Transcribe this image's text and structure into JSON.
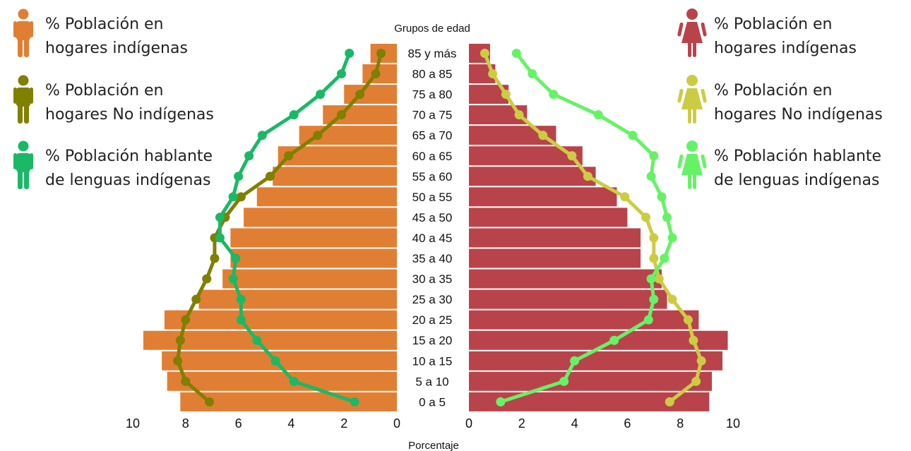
{
  "chart_data": {
    "type": "bar",
    "subtype": "population-pyramid-with-line-overlays",
    "category_header": "Grupos de edad",
    "xlabel": "Porcentaje",
    "categories": [
      "85 y más",
      "80 a 85",
      "75 a 80",
      "70 a 75",
      "65 a 70",
      "60 a 65",
      "55 a 60",
      "50 a 55",
      "45 a 50",
      "40 a 45",
      "35 a 40",
      "30 a 35",
      "25 a 30",
      "20 a 25",
      "15 a 20",
      "10 a 15",
      "5 a 10",
      "0 a  5"
    ],
    "xlim": [
      0,
      10
    ],
    "xticks": [
      "10",
      "8",
      "6",
      "4",
      "2",
      "0",
      "0",
      "2",
      "4",
      "6",
      "8",
      "10"
    ],
    "grid": false,
    "left": {
      "bar_series": {
        "name": "% Población en hogares indígenas",
        "color": "#e07f33",
        "values": [
          1.0,
          1.3,
          2.0,
          2.8,
          3.7,
          4.5,
          4.7,
          5.3,
          5.8,
          6.3,
          6.3,
          6.6,
          7.5,
          8.8,
          9.6,
          8.9,
          8.7,
          8.2
        ]
      },
      "line_series": [
        {
          "name": "% Población en hogares No indígenas",
          "color": "#7f7f00",
          "values": [
            0.6,
            0.8,
            1.4,
            2.1,
            3.0,
            4.1,
            4.8,
            5.9,
            6.5,
            6.9,
            6.9,
            7.2,
            7.6,
            8.0,
            8.2,
            8.3,
            8.0,
            7.1
          ]
        },
        {
          "name": "% Población hablante de lenguas indígenas",
          "color": "#1bb865",
          "values": [
            1.8,
            2.1,
            2.9,
            3.9,
            5.1,
            5.6,
            6.0,
            6.2,
            6.7,
            6.7,
            6.1,
            6.2,
            5.9,
            5.9,
            5.3,
            4.6,
            3.9,
            1.6
          ]
        }
      ]
    },
    "right": {
      "bar_series": {
        "name": "% Población en hogares indígenas",
        "color": "#b9434a",
        "values": [
          0.8,
          1.0,
          1.5,
          2.2,
          3.3,
          4.3,
          4.8,
          5.6,
          6.0,
          6.5,
          6.5,
          7.3,
          7.5,
          8.7,
          9.8,
          9.6,
          9.2,
          9.1
        ]
      },
      "line_series": [
        {
          "name": "% Población en hogares No indígenas",
          "color": "#cccc44",
          "values": [
            0.6,
            0.9,
            1.4,
            1.9,
            2.8,
            3.9,
            4.5,
            5.9,
            6.7,
            7.0,
            7.0,
            7.2,
            7.7,
            8.3,
            8.5,
            8.8,
            8.6,
            7.6
          ]
        },
        {
          "name": "% Población hablante de lenguas indígenas",
          "color": "#66f266",
          "values": [
            1.8,
            2.4,
            3.2,
            4.9,
            6.2,
            7.0,
            6.9,
            7.3,
            7.5,
            7.7,
            7.4,
            6.9,
            7.0,
            6.8,
            5.5,
            4.0,
            3.6,
            1.2
          ]
        }
      ]
    },
    "legend": {
      "left": [
        {
          "line1": "% Población en",
          "line2": "hogares indígenas",
          "color": "#e07f33",
          "icon": "male-person-icon"
        },
        {
          "line1": "% Población en",
          "line2": "hogares No indígenas",
          "color": "#7f7f00",
          "icon": "male-person-icon"
        },
        {
          "line1": "% Población hablante",
          "line2": "de lenguas indígenas",
          "color": "#1bb865",
          "icon": "male-person-icon"
        }
      ],
      "right": [
        {
          "line1": "% Población en",
          "line2": "hogares indígenas",
          "color": "#b9434a",
          "icon": "female-person-icon"
        },
        {
          "line1": "% Población en",
          "line2": "hogares No indígenas",
          "color": "#cccc44",
          "icon": "female-person-icon"
        },
        {
          "line1": "% Población hablante",
          "line2": "de lenguas indígenas",
          "color": "#66f266",
          "icon": "female-person-icon"
        }
      ]
    }
  }
}
